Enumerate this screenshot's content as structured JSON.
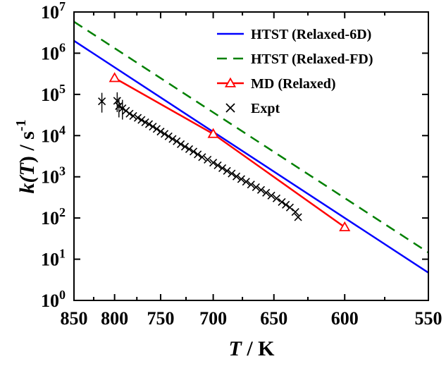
{
  "chart_data": {
    "type": "line",
    "xlabel_var": "T",
    "xlabel_unit": " / K",
    "ylabel_prefix": "k(",
    "ylabel_var": "T",
    "ylabel_suffix": ") / s",
    "ylabel_sup": "-1",
    "x_axis": {
      "quantity": "temperature",
      "unit": "K",
      "scale": "reciprocal",
      "reversed": true,
      "range": [
        850,
        550
      ],
      "ticks": [
        850,
        800,
        750,
        700,
        650,
        600,
        550
      ]
    },
    "y_axis": {
      "scale": "log",
      "range": [
        1,
        10000000
      ],
      "ticks": [
        {
          "base": "10",
          "exp": "0"
        },
        {
          "base": "10",
          "exp": "1"
        },
        {
          "base": "10",
          "exp": "2"
        },
        {
          "base": "10",
          "exp": "3"
        },
        {
          "base": "10",
          "exp": "4"
        },
        {
          "base": "10",
          "exp": "5"
        },
        {
          "base": "10",
          "exp": "6"
        },
        {
          "base": "10",
          "exp": "7"
        }
      ]
    },
    "grid": false,
    "legend_position": "top-right",
    "series": [
      {
        "name": "HTST (Relaxed-6D)",
        "style": "solid",
        "color": "#0000ff",
        "x": [
          850,
          550
        ],
        "y": [
          2000000,
          4.7
        ]
      },
      {
        "name": "HTST (Relaxed-FD)",
        "style": "dashed",
        "color": "#008000",
        "x": [
          850,
          550
        ],
        "y": [
          5800000,
          14.5
        ]
      },
      {
        "name": "MD (Relaxed)",
        "style": "line-triangle",
        "color": "#ff0000",
        "x": [
          800,
          700,
          600
        ],
        "y": [
          250000,
          11000,
          60
        ]
      },
      {
        "name": "Expt",
        "style": "cross",
        "color": "#000000",
        "x": [
          815,
          797,
          795,
          791,
          787,
          783,
          779,
          774,
          770,
          766,
          762,
          758,
          754,
          750,
          746,
          742,
          738,
          734,
          730,
          726,
          722,
          718,
          714,
          710,
          705,
          700,
          696,
          692,
          688,
          684,
          680,
          676,
          672,
          668,
          664,
          660,
          656,
          652,
          648,
          644,
          641,
          638,
          634,
          632
        ],
        "y": [
          68000,
          70000,
          52000,
          46000,
          40000,
          34000,
          30000,
          27000,
          24000,
          21000,
          19000,
          16500,
          14500,
          12500,
          11000,
          9600,
          8300,
          7300,
          6200,
          5400,
          4700,
          4100,
          3500,
          3000,
          2600,
          2200,
          1900,
          1620,
          1390,
          1200,
          1020,
          880,
          760,
          650,
          560,
          480,
          410,
          350,
          300,
          245,
          210,
          180,
          140,
          105
        ]
      }
    ]
  }
}
